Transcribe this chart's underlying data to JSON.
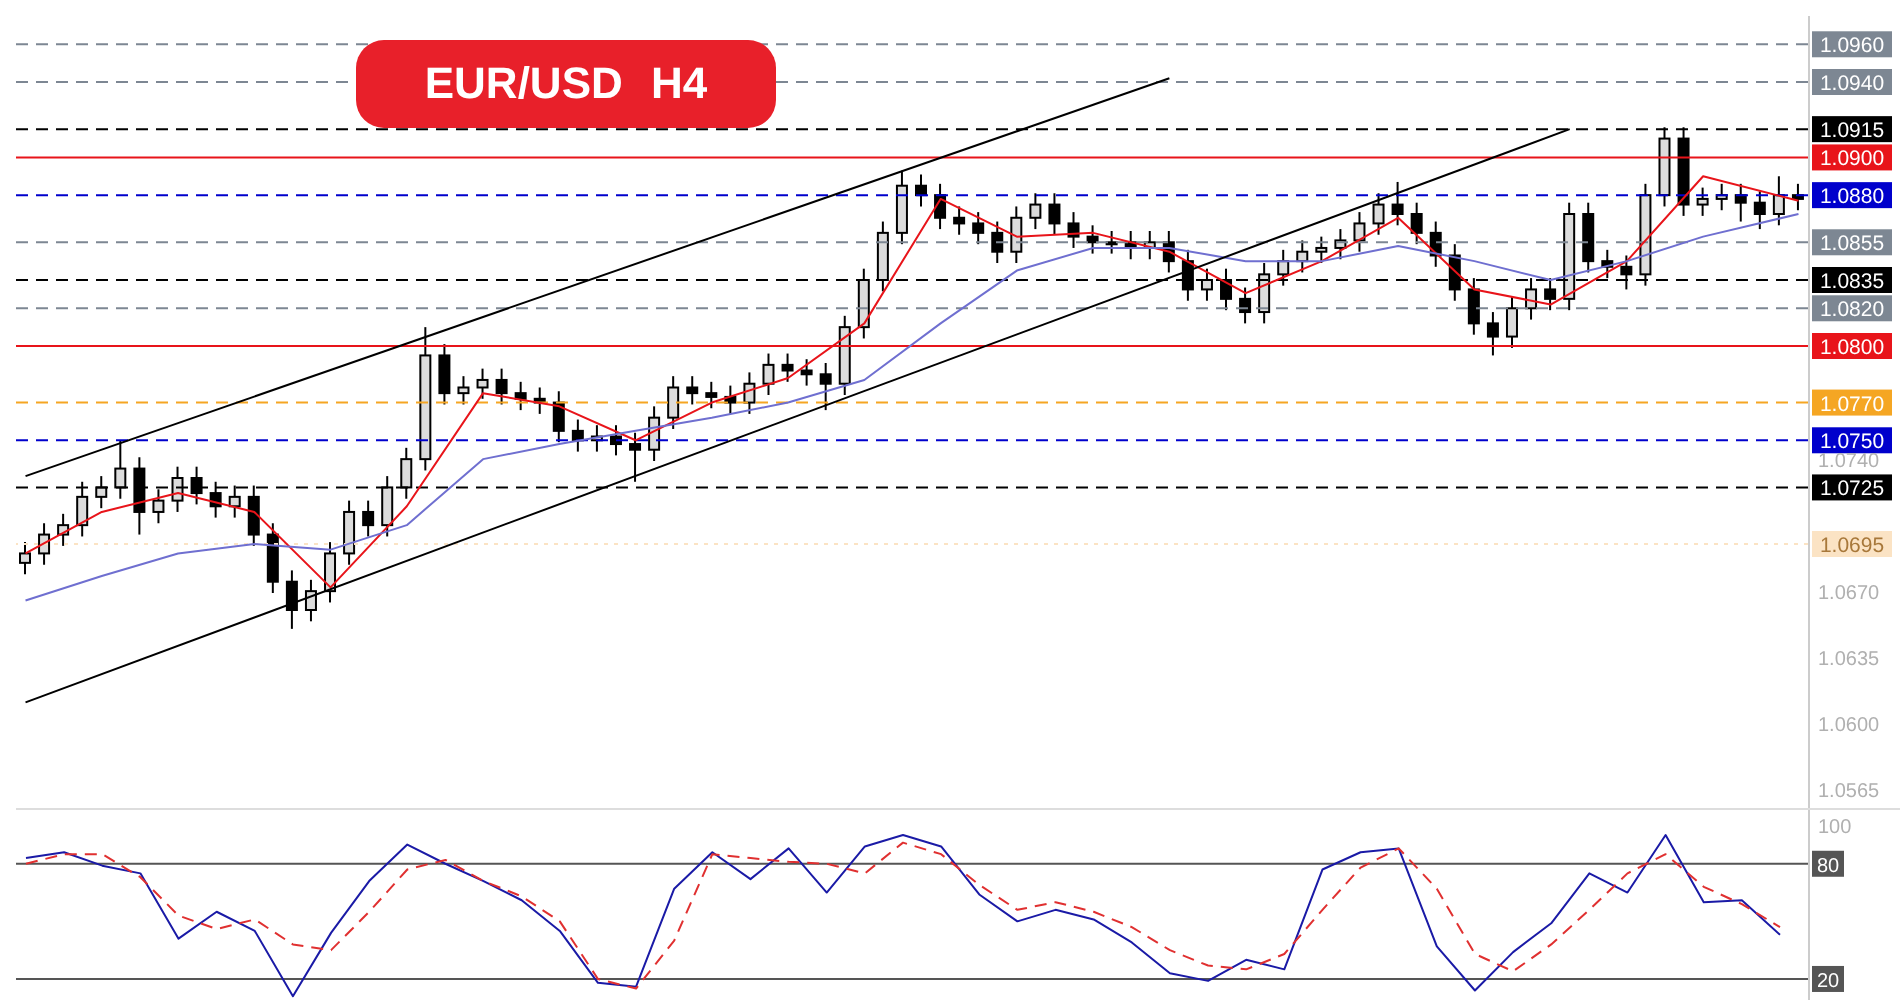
{
  "chart_data": [
    {
      "type": "candlestick",
      "title": "EUR/USD H4",
      "color": "#000000",
      "tick_labels": "y",
      "grid": false,
      "categories": [
        null,
        null,
        null,
        null,
        null,
        null,
        null,
        null,
        null,
        null,
        null,
        null,
        null,
        null,
        null,
        null,
        null,
        null,
        null,
        null,
        null,
        null,
        null,
        null,
        null,
        null,
        null,
        null,
        null,
        null,
        null,
        null,
        null,
        null,
        null,
        null,
        null,
        null,
        null,
        null,
        null,
        null,
        null,
        null,
        null,
        null,
        null,
        null,
        null,
        null,
        null,
        null,
        null,
        null,
        null,
        null,
        null,
        null,
        null,
        null,
        null,
        null,
        null,
        null,
        null,
        null,
        null,
        null,
        null,
        null,
        null,
        null,
        null,
        null,
        null,
        null,
        null,
        null,
        null,
        null,
        null,
        null,
        null,
        null,
        null,
        null,
        null,
        null,
        null,
        null,
        null,
        null,
        null,
        null
      ],
      "ohlc": [
        [
          1.0685,
          1.0696,
          1.0679,
          1.069
        ],
        [
          1.069,
          1.0706,
          1.0684,
          1.07
        ],
        [
          1.07,
          1.0711,
          1.0694,
          1.0705
        ],
        [
          1.0705,
          1.0728,
          1.0699,
          1.072
        ],
        [
          1.072,
          1.0731,
          1.0714,
          1.0725
        ],
        [
          1.0725,
          1.075,
          1.0719,
          1.0735
        ],
        [
          1.0735,
          1.0741,
          1.07,
          1.0712
        ],
        [
          1.0712,
          1.0724,
          1.0706,
          1.0718
        ],
        [
          1.0718,
          1.0736,
          1.0712,
          1.073
        ],
        [
          1.073,
          1.0736,
          1.0716,
          1.0722
        ],
        [
          1.0722,
          1.0728,
          1.0709,
          1.0715
        ],
        [
          1.0715,
          1.0726,
          1.0709,
          1.072
        ],
        [
          1.072,
          1.0726,
          1.0694,
          1.07
        ],
        [
          1.07,
          1.0706,
          1.0669,
          1.0675
        ],
        [
          1.0675,
          1.0681,
          1.065,
          1.066
        ],
        [
          1.066,
          1.0676,
          1.0654,
          1.067
        ],
        [
          1.067,
          1.0696,
          1.0664,
          1.069
        ],
        [
          1.069,
          1.0718,
          1.0684,
          1.0712
        ],
        [
          1.0712,
          1.0718,
          1.0699,
          1.0705
        ],
        [
          1.0705,
          1.0731,
          1.0699,
          1.0725
        ],
        [
          1.0725,
          1.0746,
          1.0719,
          1.074
        ],
        [
          1.074,
          1.081,
          1.0734,
          1.0795
        ],
        [
          1.0795,
          1.0801,
          1.0769,
          1.0775
        ],
        [
          1.0775,
          1.0784,
          1.0769,
          1.0778
        ],
        [
          1.0778,
          1.0788,
          1.0772,
          1.0782
        ],
        [
          1.0782,
          1.0788,
          1.0769,
          1.0775
        ],
        [
          1.0775,
          1.0781,
          1.0766,
          1.0772
        ],
        [
          1.0772,
          1.0778,
          1.0764,
          1.077
        ],
        [
          1.077,
          1.0776,
          1.0749,
          1.0755
        ],
        [
          1.0755,
          1.0761,
          1.0744,
          1.075
        ],
        [
          1.075,
          1.0758,
          1.0744,
          1.0752
        ],
        [
          1.0752,
          1.0758,
          1.0742,
          1.0748
        ],
        [
          1.0748,
          1.0754,
          1.0728,
          1.0745
        ],
        [
          1.0745,
          1.0768,
          1.0739,
          1.0762
        ],
        [
          1.0762,
          1.0784,
          1.0756,
          1.0778
        ],
        [
          1.0778,
          1.0784,
          1.0769,
          1.0775
        ],
        [
          1.0775,
          1.0781,
          1.0767,
          1.0773
        ],
        [
          1.0773,
          1.0779,
          1.0764,
          1.077
        ],
        [
          1.077,
          1.0786,
          1.0764,
          1.078
        ],
        [
          1.078,
          1.0796,
          1.0774,
          1.079
        ],
        [
          1.079,
          1.0796,
          1.0781,
          1.0787
        ],
        [
          1.0787,
          1.0793,
          1.0779,
          1.0785
        ],
        [
          1.0785,
          1.0791,
          1.0766,
          1.078
        ],
        [
          1.078,
          1.0816,
          1.0774,
          1.081
        ],
        [
          1.081,
          1.0841,
          1.0804,
          1.0835
        ],
        [
          1.0835,
          1.0866,
          1.0829,
          1.086
        ],
        [
          1.086,
          1.0893,
          1.0854,
          1.0885
        ],
        [
          1.0885,
          1.0891,
          1.0874,
          1.088
        ],
        [
          1.088,
          1.0886,
          1.0862,
          1.0868
        ],
        [
          1.0868,
          1.0874,
          1.0859,
          1.0865
        ],
        [
          1.0865,
          1.0871,
          1.0854,
          1.086
        ],
        [
          1.086,
          1.0866,
          1.0844,
          1.085
        ],
        [
          1.085,
          1.0874,
          1.0844,
          1.0868
        ],
        [
          1.0868,
          1.0881,
          1.0862,
          1.0875
        ],
        [
          1.0875,
          1.0881,
          1.0859,
          1.0865
        ],
        [
          1.0865,
          1.0871,
          1.0852,
          1.0858
        ],
        [
          1.0858,
          1.0864,
          1.0849,
          1.0855
        ],
        [
          1.0855,
          1.0861,
          1.0849,
          1.0855
        ],
        [
          1.0855,
          1.0861,
          1.0846,
          1.0852
        ],
        [
          1.0852,
          1.0861,
          1.0846,
          1.0855
        ],
        [
          1.0855,
          1.0861,
          1.0839,
          1.0845
        ],
        [
          1.0845,
          1.0851,
          1.0824,
          1.083
        ],
        [
          1.083,
          1.0841,
          1.0824,
          1.0835
        ],
        [
          1.0835,
          1.0841,
          1.0819,
          1.0825
        ],
        [
          1.0825,
          1.0831,
          1.0812,
          1.0818
        ],
        [
          1.0818,
          1.0844,
          1.0812,
          1.0838
        ],
        [
          1.0838,
          1.0851,
          1.0832,
          1.0845
        ],
        [
          1.0845,
          1.0856,
          1.0839,
          1.085
        ],
        [
          1.085,
          1.0858,
          1.0844,
          1.0852
        ],
        [
          1.0852,
          1.0862,
          1.0846,
          1.0856
        ],
        [
          1.0856,
          1.0871,
          1.085,
          1.0865
        ],
        [
          1.0865,
          1.0881,
          1.0859,
          1.0875
        ],
        [
          1.0875,
          1.0887,
          1.0864,
          1.087
        ],
        [
          1.087,
          1.0876,
          1.0854,
          1.086
        ],
        [
          1.086,
          1.0866,
          1.0842,
          1.0848
        ],
        [
          1.0848,
          1.0854,
          1.0824,
          1.083
        ],
        [
          1.083,
          1.0836,
          1.0806,
          1.0812
        ],
        [
          1.0812,
          1.0818,
          1.0795,
          1.0805
        ],
        [
          1.0805,
          1.0826,
          1.0799,
          1.082
        ],
        [
          1.082,
          1.0836,
          1.0814,
          1.083
        ],
        [
          1.083,
          1.0836,
          1.0819,
          1.0825
        ],
        [
          1.0825,
          1.0876,
          1.0819,
          1.087
        ],
        [
          1.087,
          1.0876,
          1.0839,
          1.0845
        ],
        [
          1.0845,
          1.0851,
          1.0836,
          1.0842
        ],
        [
          1.0842,
          1.0848,
          1.083,
          1.0838
        ],
        [
          1.0838,
          1.0886,
          1.0832,
          1.088
        ],
        [
          1.088,
          1.0916,
          1.0874,
          1.091
        ],
        [
          1.091,
          1.0916,
          1.0869,
          1.0875
        ],
        [
          1.0875,
          1.0884,
          1.0869,
          1.0878
        ],
        [
          1.0878,
          1.0886,
          1.0872,
          1.088
        ],
        [
          1.088,
          1.0886,
          1.0866,
          1.0876
        ],
        [
          1.0876,
          1.0882,
          1.0862,
          1.087
        ],
        [
          1.087,
          1.089,
          1.0864,
          1.088
        ],
        [
          1.088,
          1.0886,
          1.0872,
          1.0878
        ]
      ],
      "series": [
        {
          "type": "line",
          "color": "#e8141a",
          "values": [
            1.069,
            null,
            null,
            null,
            1.0712,
            null,
            null,
            null,
            1.0722,
            null,
            null,
            null,
            1.0712,
            null,
            null,
            null,
            1.0672,
            null,
            null,
            null,
            1.0715,
            null,
            null,
            null,
            1.0775,
            null,
            null,
            null,
            1.0768,
            null,
            null,
            null,
            1.075,
            null,
            null,
            null,
            1.077,
            null,
            null,
            null,
            1.0783,
            null,
            null,
            null,
            1.0812,
            null,
            null,
            null,
            1.0878,
            null,
            null,
            null,
            1.0858,
            null,
            null,
            null,
            1.086,
            null,
            null,
            null,
            1.085,
            null,
            null,
            null,
            1.0828,
            null,
            null,
            null,
            1.0845,
            null,
            null,
            null,
            1.0868,
            null,
            null,
            null,
            1.083,
            null,
            null,
            null,
            1.0822,
            null,
            null,
            null,
            1.0845,
            null,
            null,
            null,
            1.089,
            null,
            null,
            null,
            null,
            1.0877
          ]
        },
        {
          "type": "line",
          "color": "#6f6fd0",
          "values": [
            1.0665,
            null,
            null,
            null,
            1.0678,
            null,
            null,
            null,
            1.069,
            null,
            null,
            null,
            1.0695,
            null,
            null,
            null,
            1.0692,
            null,
            null,
            null,
            1.0705,
            null,
            null,
            null,
            1.074,
            null,
            null,
            null,
            1.0748,
            null,
            null,
            null,
            1.0755,
            null,
            null,
            null,
            1.0762,
            null,
            null,
            null,
            1.077,
            null,
            null,
            null,
            1.0782,
            null,
            null,
            null,
            1.0812,
            null,
            null,
            null,
            1.084,
            null,
            null,
            null,
            1.0852,
            null,
            null,
            null,
            1.0852,
            null,
            null,
            null,
            1.0845,
            null,
            null,
            null,
            1.0845,
            null,
            null,
            null,
            1.0853,
            null,
            null,
            null,
            1.0845,
            null,
            null,
            null,
            1.0835,
            null,
            null,
            null,
            1.0845,
            null,
            null,
            null,
            1.0858,
            null,
            null,
            null,
            null,
            1.087
          ]
        },
        {
          "type": "line",
          "color": "#000000",
          "values": [
            1.0731,
            null,
            null,
            null,
            null,
            null,
            null,
            null,
            null,
            null,
            null,
            null,
            null,
            null,
            null,
            null,
            null,
            null,
            null,
            null,
            null,
            null,
            null,
            null,
            null,
            null,
            null,
            null,
            null,
            null,
            null,
            null,
            null,
            null,
            null,
            null,
            null,
            null,
            null,
            null,
            null,
            null,
            null,
            null,
            null,
            null,
            null,
            null,
            null,
            null,
            null,
            null,
            null,
            null,
            null,
            null,
            null,
            null,
            null,
            null,
            1.0942,
            null,
            null,
            null,
            null,
            null,
            null,
            null,
            null,
            null,
            null,
            null,
            null,
            null,
            null,
            null,
            null,
            null,
            null,
            null,
            null,
            null,
            null,
            null,
            null,
            null,
            null,
            null,
            null,
            null,
            null,
            null,
            null,
            null
          ]
        },
        {
          "type": "line",
          "color": "#000000",
          "values": [
            1.0611,
            null,
            null,
            null,
            null,
            null,
            null,
            null,
            null,
            null,
            null,
            null,
            null,
            null,
            null,
            null,
            null,
            null,
            null,
            null,
            null,
            null,
            null,
            null,
            null,
            null,
            null,
            null,
            null,
            null,
            null,
            null,
            null,
            null,
            null,
            null,
            null,
            null,
            null,
            null,
            null,
            null,
            null,
            null,
            null,
            null,
            null,
            null,
            null,
            null,
            null,
            null,
            null,
            null,
            null,
            null,
            null,
            null,
            null,
            null,
            null,
            null,
            null,
            null,
            null,
            null,
            null,
            null,
            null,
            null,
            null,
            null,
            null,
            null,
            null,
            null,
            null,
            null,
            null,
            null,
            null,
            1.0915,
            null,
            null,
            null,
            null,
            null,
            null,
            null,
            null,
            null,
            null,
            null,
            null
          ]
        }
      ],
      "ylim": [
        1.0555,
        1.0975
      ],
      "yticks": [
        1.0565,
        {
          "value": 1.06,
          "label": "1.0600"
        },
        1.0635,
        {
          "value": 1.067,
          "label": "1.0670"
        },
        {
          "value": 1.074,
          "label": "1.0740"
        }
      ],
      "ref_lines": [
        {
          "axis": "y",
          "value": 1.096,
          "label": "1.0960",
          "color": "#7d8793",
          "line_style": "dashed"
        },
        {
          "axis": "y",
          "value": 1.094,
          "label": "1.0940",
          "color": "#7d8793",
          "line_style": "dashed"
        },
        {
          "axis": "y",
          "value": 1.0915,
          "label": "1.0915",
          "color": "#000000",
          "line_style": "dashed"
        },
        {
          "axis": "y",
          "value": 1.09,
          "label": "1.0900",
          "color": "#e8141a",
          "line_style": "solid"
        },
        {
          "axis": "y",
          "value": 1.088,
          "label": "1.0880",
          "color": "#0000cc",
          "line_style": "dashed"
        },
        {
          "axis": "y",
          "value": 1.0855,
          "label": "1.0855",
          "color": "#7d8793",
          "line_style": "dashed"
        },
        {
          "axis": "y",
          "value": 1.0835,
          "label": "1.0835",
          "color": "#000000",
          "line_style": "dashed"
        },
        {
          "axis": "y",
          "value": 1.082,
          "label": "1.0820",
          "color": "#7d8793",
          "line_style": "dashed"
        },
        {
          "axis": "y",
          "value": 1.08,
          "label": "1.0800",
          "color": "#e8141a",
          "line_style": "solid"
        },
        {
          "axis": "y",
          "value": 1.077,
          "label": "1.0770",
          "color": "#f5a623",
          "line_style": "dashed"
        },
        {
          "axis": "y",
          "value": 1.075,
          "label": "1.0750",
          "color": "#0000cc",
          "line_style": "dashed"
        },
        {
          "axis": "y",
          "value": 1.0725,
          "label": "1.0725",
          "color": "#000000",
          "line_style": "dashed"
        },
        {
          "axis": "y",
          "value": 1.0695,
          "label": "1.0695",
          "color": "#fbe3c4",
          "line_style": "dotted"
        }
      ]
    },
    {
      "type": "line",
      "tick_labels": "y",
      "grid": false,
      "ylim": [
        8,
        108
      ],
      "yticks": [
        20,
        80,
        100
      ],
      "categories": [
        null,
        null,
        null,
        null,
        null,
        null,
        null,
        null,
        null,
        null,
        null,
        null,
        null,
        null,
        null,
        null,
        null,
        null,
        null,
        null,
        null,
        null,
        null,
        null,
        null,
        null,
        null,
        null,
        null,
        null,
        null,
        null,
        null,
        null,
        null,
        null,
        null,
        null,
        null,
        null,
        null,
        null,
        null,
        null,
        null,
        null,
        null
      ],
      "series": [
        {
          "color": "#1a1aa6",
          "line_style": "solid",
          "values": [
            83,
            86,
            79,
            75,
            41,
            55,
            45,
            11,
            44,
            71,
            90,
            80,
            71,
            61,
            45,
            18,
            16,
            67,
            86,
            72,
            88,
            65,
            89,
            95,
            89,
            64,
            50,
            56,
            51,
            39,
            23,
            19,
            30,
            25,
            77,
            86,
            88,
            37,
            14,
            34,
            49,
            75,
            65,
            95,
            60,
            61,
            43
          ]
        },
        {
          "color": "#e03030",
          "line_style": "dashed",
          "values": [
            80,
            85,
            85,
            73,
            53,
            46,
            51,
            38,
            35,
            55,
            77,
            82,
            71,
            63,
            50,
            20,
            15,
            40,
            85,
            83,
            81,
            80,
            75,
            91,
            85,
            69,
            56,
            60,
            55,
            47,
            35,
            27,
            25,
            33,
            56,
            78,
            88,
            67,
            33,
            24,
            38,
            56,
            75,
            85,
            68,
            59,
            47
          ]
        }
      ],
      "ref_lines": [
        {
          "axis": "y",
          "value": 80,
          "color": "#555555",
          "line_style": "solid"
        },
        {
          "axis": "y",
          "value": 20,
          "color": "#555555",
          "line_style": "solid"
        }
      ]
    }
  ]
}
